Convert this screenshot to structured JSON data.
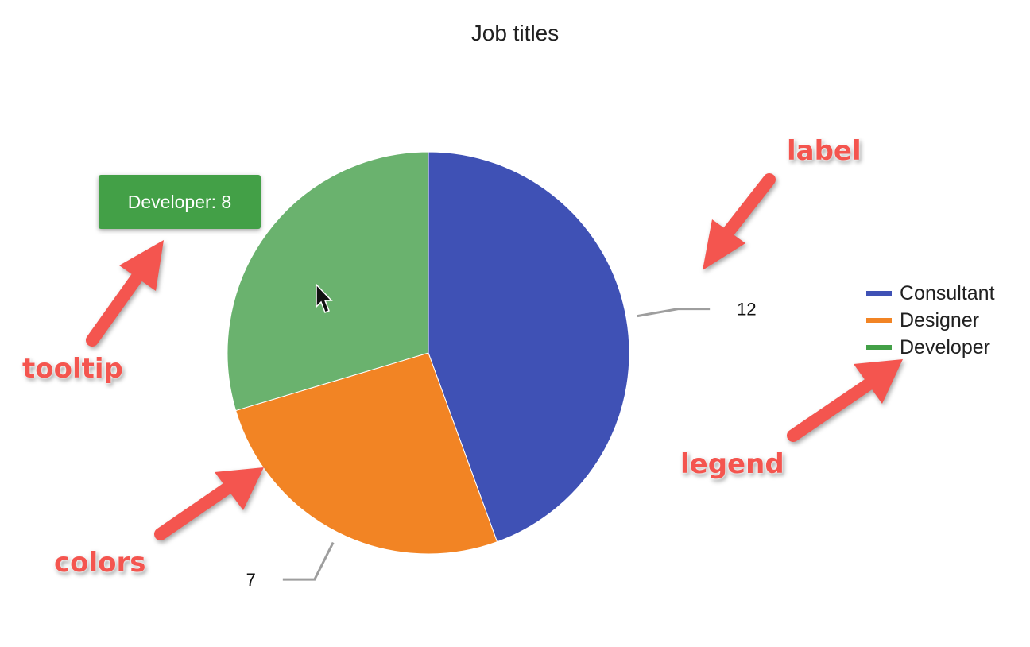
{
  "chart_data": {
    "type": "pie",
    "title": "Job titles",
    "categories": [
      "Consultant",
      "Designer",
      "Developer"
    ],
    "values": [
      12,
      7,
      8
    ],
    "colors": [
      "#3f51b5",
      "#f28424",
      "#6ab26e"
    ],
    "legend_colors": [
      "#3f51b5",
      "#f28424",
      "#43a047"
    ],
    "data_labels": [
      "12",
      "7",
      ""
    ],
    "legend_position": "right"
  },
  "tooltip": {
    "text": "Developer: 8",
    "color": "#43a047"
  },
  "annotations": {
    "label": "label",
    "legend": "legend",
    "tooltip": "tooltip",
    "colors": "colors",
    "color": "#f4554f"
  }
}
